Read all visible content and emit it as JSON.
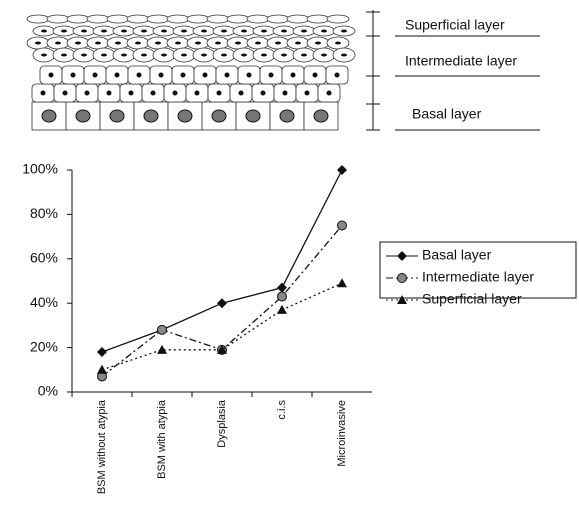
{
  "diagram": {
    "labels": [
      "Superficial layer",
      "Intermediate layer",
      "Basal layer"
    ]
  },
  "chart_data": {
    "type": "line",
    "categories": [
      "BSM without atypia",
      "BSM with atypia",
      "Dysplasia",
      "c.i.s",
      "Microinvasive"
    ],
    "ylim": [
      0,
      100
    ],
    "yticks": [
      {
        "value": 0,
        "label": "0%"
      },
      {
        "value": 20,
        "label": "20%"
      },
      {
        "value": 40,
        "label": "40%"
      },
      {
        "value": 60,
        "label": "60%"
      },
      {
        "value": 80,
        "label": "80%"
      },
      {
        "value": 100,
        "label": "100%"
      }
    ],
    "grid": false,
    "legend": "right",
    "series": [
      {
        "name": "Basal layer",
        "color": "#111111",
        "marker": "diamond",
        "dash": "solid",
        "values": [
          18,
          28,
          40,
          47,
          100
        ]
      },
      {
        "name": "Intermediate layer",
        "color": "#111111",
        "marker": "circle",
        "dash": "dashdot",
        "values": [
          7,
          28,
          19,
          43,
          75
        ]
      },
      {
        "name": "Superficial layer",
        "color": "#111111",
        "marker": "triangle",
        "dash": "dotted",
        "values": [
          10,
          19,
          19,
          37,
          49
        ]
      }
    ]
  }
}
